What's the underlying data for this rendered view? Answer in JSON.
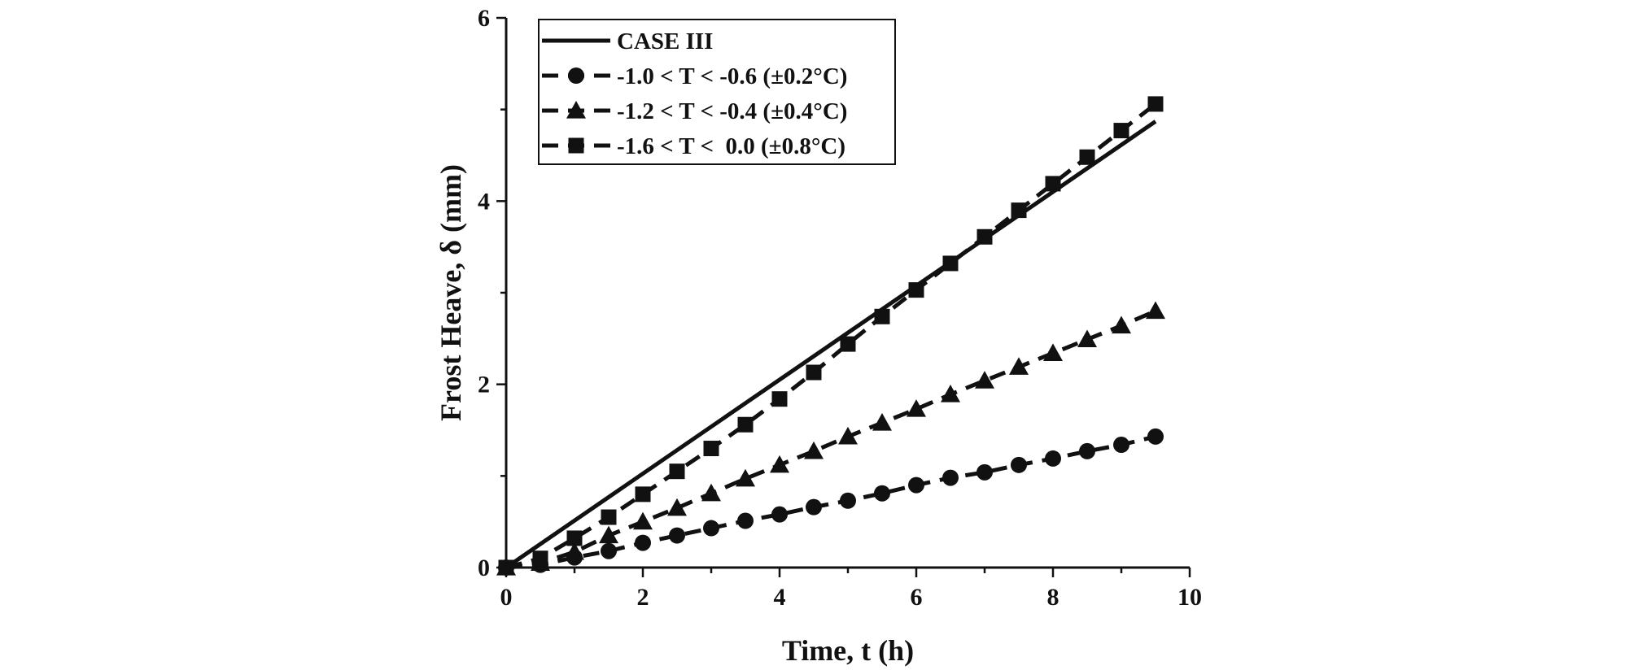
{
  "chart_data": {
    "type": "line",
    "xlabel": "Time, t (h)",
    "ylabel": "Frost Heave, δ (mm)",
    "xlim": [
      0,
      10
    ],
    "ylim": [
      0,
      6
    ],
    "x_ticks": [
      0,
      2,
      4,
      6,
      8,
      10
    ],
    "y_ticks": [
      0,
      2,
      4,
      6
    ],
    "grid": false,
    "legend_position": "top-left",
    "series": [
      {
        "name": "CASE III",
        "style": "solid",
        "marker": "none",
        "x": [
          0,
          9.5
        ],
        "y": [
          0,
          4.87
        ]
      },
      {
        "name": "-1.0 < T < -0.6 (±0.2°C)",
        "style": "dashed",
        "marker": "circle",
        "x": [
          0,
          0.5,
          1,
          1.5,
          2,
          2.5,
          3,
          3.5,
          4,
          4.5,
          5,
          5.5,
          6,
          6.5,
          7,
          7.5,
          8,
          8.5,
          9,
          9.5
        ],
        "y": [
          0,
          0.03,
          0.11,
          0.18,
          0.27,
          0.35,
          0.43,
          0.51,
          0.58,
          0.66,
          0.73,
          0.81,
          0.9,
          0.98,
          1.04,
          1.12,
          1.19,
          1.27,
          1.34,
          1.43
        ]
      },
      {
        "name": "-1.2 < T < -0.4 (±0.4°C)",
        "style": "dashed",
        "marker": "triangle",
        "x": [
          0,
          0.5,
          1,
          1.5,
          2,
          2.5,
          3,
          3.5,
          4,
          4.5,
          5,
          5.5,
          6,
          6.5,
          7,
          7.5,
          8,
          8.5,
          9,
          9.5
        ],
        "y": [
          0,
          0.05,
          0.17,
          0.35,
          0.5,
          0.65,
          0.81,
          0.97,
          1.12,
          1.27,
          1.43,
          1.58,
          1.73,
          1.89,
          2.04,
          2.19,
          2.34,
          2.49,
          2.64,
          2.8
        ]
      },
      {
        "name": "-1.6 < T <  0.0 (±0.8°C)",
        "style": "dashed",
        "marker": "square",
        "x": [
          0,
          0.5,
          1,
          1.5,
          2,
          2.5,
          3,
          3.5,
          4,
          4.5,
          5,
          5.5,
          6,
          6.5,
          7,
          7.5,
          8,
          8.5,
          9,
          9.5
        ],
        "y": [
          0,
          0.1,
          0.32,
          0.55,
          0.8,
          1.05,
          1.3,
          1.56,
          1.84,
          2.13,
          2.44,
          2.74,
          3.03,
          3.32,
          3.61,
          3.9,
          4.19,
          4.48,
          4.77,
          5.06
        ]
      }
    ]
  }
}
